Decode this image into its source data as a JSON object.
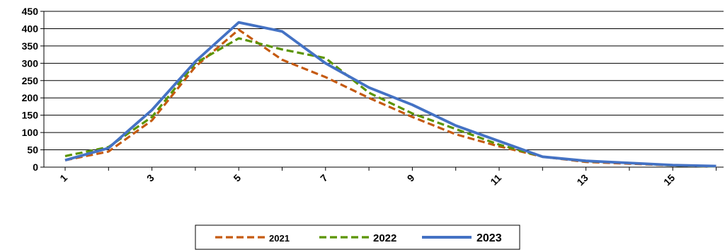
{
  "chart_data": {
    "type": "line",
    "x": [
      1,
      2,
      3,
      4,
      5,
      6,
      7,
      8,
      9,
      10,
      11,
      12,
      13,
      14,
      15,
      16
    ],
    "x_tick_labels": [
      "1",
      "3",
      "5",
      "7",
      "9",
      "11",
      "13",
      "15"
    ],
    "y_tick_labels": [
      "0",
      "50",
      "100",
      "150",
      "200",
      "250",
      "300",
      "350",
      "400",
      "450"
    ],
    "ylim": [
      0,
      450
    ],
    "grid": "horizontal",
    "legend_position": "bottom",
    "series": [
      {
        "name": "2021",
        "color": "#C55A11",
        "style": "dashed",
        "values": [
          20,
          45,
          135,
          290,
          397,
          310,
          260,
          200,
          145,
          95,
          60,
          30,
          15,
          10,
          5,
          2
        ]
      },
      {
        "name": "2022",
        "color": "#5B9400",
        "style": "dashed",
        "values": [
          32,
          58,
          145,
          300,
          372,
          340,
          315,
          215,
          155,
          110,
          65,
          30,
          17,
          12,
          5,
          2
        ]
      },
      {
        "name": "2023",
        "color": "#4472C4",
        "style": "solid",
        "values": [
          20,
          55,
          165,
          305,
          418,
          392,
          300,
          230,
          180,
          120,
          75,
          30,
          18,
          12,
          6,
          3
        ]
      }
    ]
  }
}
